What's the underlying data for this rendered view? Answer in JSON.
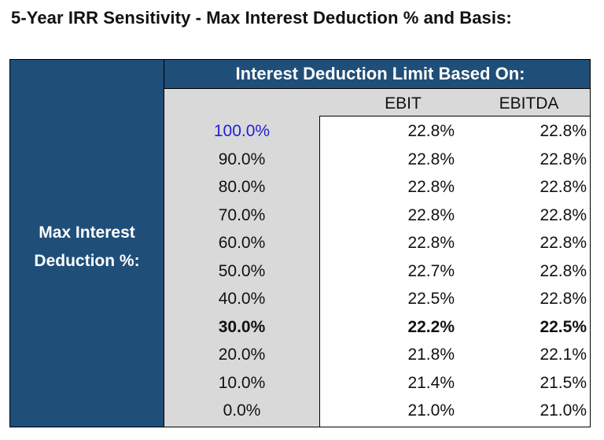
{
  "title": "5-Year IRR Sensitivity - Max Interest Deduction % and Basis:",
  "header": "Interest Deduction Limit Based On:",
  "columns": [
    "EBIT",
    "EBITDA"
  ],
  "row_label": [
    "Max Interest",
    "Deduction %:"
  ],
  "colors": {
    "header_bg": "#1f4e79",
    "gray_bg": "#d9d9d9",
    "base_case_text": "#1f1fd6"
  },
  "rows": [
    {
      "pct": "100.0%",
      "ebit": "22.8%",
      "ebitda": "22.8%"
    },
    {
      "pct": "90.0%",
      "ebit": "22.8%",
      "ebitda": "22.8%"
    },
    {
      "pct": "80.0%",
      "ebit": "22.8%",
      "ebitda": "22.8%"
    },
    {
      "pct": "70.0%",
      "ebit": "22.8%",
      "ebitda": "22.8%"
    },
    {
      "pct": "60.0%",
      "ebit": "22.8%",
      "ebitda": "22.8%"
    },
    {
      "pct": "50.0%",
      "ebit": "22.7%",
      "ebitda": "22.8%"
    },
    {
      "pct": "40.0%",
      "ebit": "22.5%",
      "ebitda": "22.8%"
    },
    {
      "pct": "30.0%",
      "ebit": "22.2%",
      "ebitda": "22.5%"
    },
    {
      "pct": "20.0%",
      "ebit": "21.8%",
      "ebitda": "22.1%"
    },
    {
      "pct": "10.0%",
      "ebit": "21.4%",
      "ebitda": "21.5%"
    },
    {
      "pct": "0.0%",
      "ebit": "21.0%",
      "ebitda": "21.0%"
    }
  ]
}
